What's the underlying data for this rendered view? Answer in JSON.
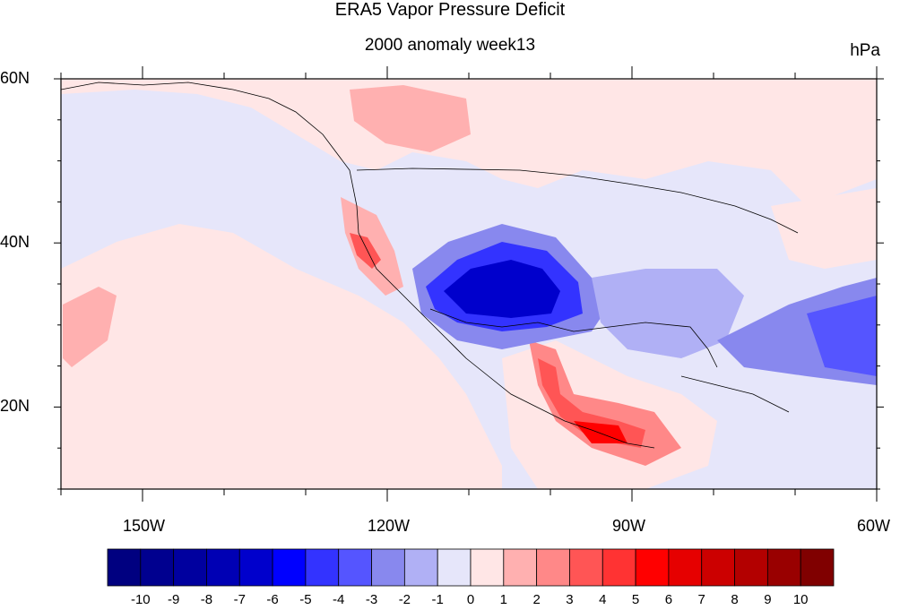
{
  "title": "ERA5 Vapor Pressure Deficit",
  "subtitle": "2000 anomaly week13",
  "units": "hPa",
  "map": {
    "lon_range": [
      -160,
      -60
    ],
    "lat_range": [
      10,
      60
    ],
    "lat_labels": [
      {
        "value": 60,
        "text": "60N"
      },
      {
        "value": 40,
        "text": "40N"
      },
      {
        "value": 20,
        "text": "20N"
      }
    ],
    "lon_labels": [
      {
        "value": -150,
        "text": "150W"
      },
      {
        "value": -120,
        "text": "120W"
      },
      {
        "value": -90,
        "text": "90W"
      },
      {
        "value": -60,
        "text": "60W"
      }
    ]
  },
  "colorbar": {
    "labels": [
      "-10",
      "-9",
      "-8",
      "-7",
      "-6",
      "-5",
      "-4",
      "-3",
      "-2",
      "-1",
      "0",
      "1",
      "2",
      "3",
      "4",
      "5",
      "6",
      "7",
      "8",
      "9",
      "10"
    ],
    "colors": [
      "#000080",
      "#00008f",
      "#00009f",
      "#0000b4",
      "#0000cc",
      "#0000ff",
      "#3333ff",
      "#5555ff",
      "#8888ee",
      "#b0b0f5",
      "#e6e6fa",
      "#ffe6e6",
      "#ffb0b0",
      "#ff8888",
      "#ff5555",
      "#ff3333",
      "#ff0000",
      "#e60000",
      "#cc0000",
      "#b30000",
      "#990000",
      "#800000"
    ]
  }
}
